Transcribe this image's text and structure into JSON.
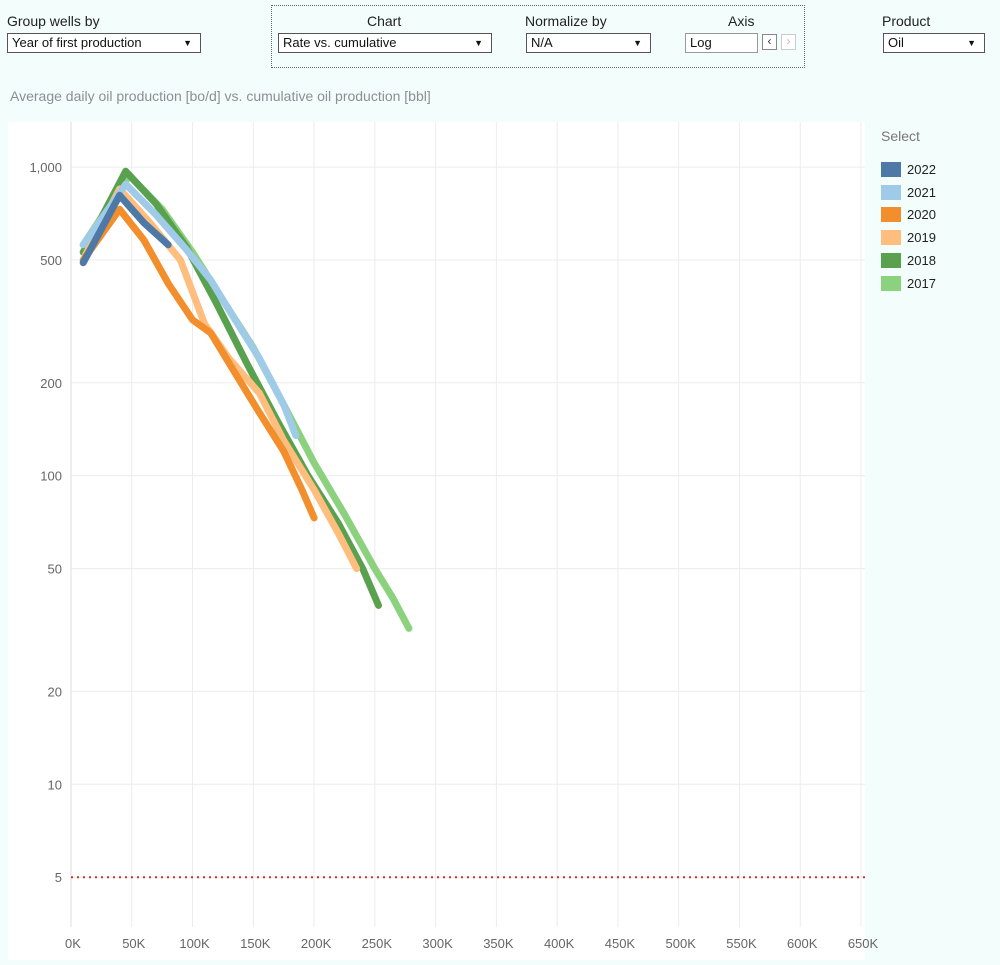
{
  "controls": {
    "group_wells_by": {
      "label": "Group wells by",
      "value": "Year of first production"
    },
    "chart": {
      "label": "Chart",
      "value": "Rate vs. cumulative"
    },
    "normalize_by": {
      "label": "Normalize by",
      "value": "N/A"
    },
    "axis": {
      "label": "Axis",
      "value": "Log"
    },
    "product": {
      "label": "Product",
      "value": "Oil"
    }
  },
  "icons": {
    "dropdown": "caret-down-icon",
    "prev": "chevron-left-icon",
    "next": "chevron-right-icon"
  },
  "arrow_glyph": "▼",
  "prev_glyph": "‹",
  "next_glyph": "›",
  "legend": {
    "title": "Select",
    "items": [
      {
        "label": "2022",
        "color": "#4e79a7"
      },
      {
        "label": "2021",
        "color": "#a0cbe8"
      },
      {
        "label": "2020",
        "color": "#f28e2b"
      },
      {
        "label": "2019",
        "color": "#ffbe7d"
      },
      {
        "label": "2018",
        "color": "#59a14f"
      },
      {
        "label": "2017",
        "color": "#8cd17d"
      }
    ]
  },
  "chart_data": {
    "type": "line",
    "title": "Average daily oil production [bo/d] vs. cumulative oil production [bbl]",
    "xlabel": "",
    "ylabel": "",
    "x_scale": "linear",
    "y_scale": "log",
    "xlim": [
      0,
      650000
    ],
    "ylim": [
      3.5,
      1400
    ],
    "x_ticks": [
      {
        "value": 0,
        "label": "0K"
      },
      {
        "value": 50000,
        "label": "50K"
      },
      {
        "value": 100000,
        "label": "100K"
      },
      {
        "value": 150000,
        "label": "150K"
      },
      {
        "value": 200000,
        "label": "200K"
      },
      {
        "value": 250000,
        "label": "250K"
      },
      {
        "value": 300000,
        "label": "300K"
      },
      {
        "value": 350000,
        "label": "350K"
      },
      {
        "value": 400000,
        "label": "400K"
      },
      {
        "value": 450000,
        "label": "450K"
      },
      {
        "value": 500000,
        "label": "500K"
      },
      {
        "value": 550000,
        "label": "550K"
      },
      {
        "value": 600000,
        "label": "600K"
      },
      {
        "value": 650000,
        "label": "650K"
      }
    ],
    "y_ticks": [
      {
        "value": 1000,
        "label": "1,000"
      },
      {
        "value": 500,
        "label": "500"
      },
      {
        "value": 200,
        "label": "200"
      },
      {
        "value": 100,
        "label": "100"
      },
      {
        "value": 50,
        "label": "50"
      },
      {
        "value": 20,
        "label": "20"
      },
      {
        "value": 10,
        "label": "10"
      },
      {
        "value": 5,
        "label": "5"
      }
    ],
    "grid": true,
    "reference_line": {
      "y": 5,
      "color": "#c0392b",
      "style": "dotted"
    },
    "legend_position": "right",
    "series": [
      {
        "name": "2017",
        "color": "#8cd17d",
        "x": [
          10000,
          48000,
          75000,
          100000,
          125000,
          150000,
          175000,
          200000,
          225000,
          250000,
          265000,
          278000
        ],
        "y": [
          560,
          940,
          730,
          530,
          370,
          260,
          170,
          110,
          75,
          50,
          40,
          32
        ]
      },
      {
        "name": "2018",
        "color": "#59a14f",
        "x": [
          10000,
          45000,
          70000,
          95000,
          120000,
          145000,
          170000,
          195000,
          220000,
          240000,
          253000
        ],
        "y": [
          530,
          970,
          760,
          550,
          360,
          230,
          150,
          100,
          70,
          50,
          38
        ]
      },
      {
        "name": "2019",
        "color": "#ffbe7d",
        "x": [
          12000,
          40000,
          65000,
          90000,
          110000,
          130000,
          155000,
          175000,
          200000,
          220000,
          235000
        ],
        "y": [
          520,
          850,
          660,
          500,
          310,
          240,
          185,
          130,
          90,
          65,
          50
        ]
      },
      {
        "name": "2020",
        "color": "#f28e2b",
        "x": [
          10000,
          40000,
          60000,
          80000,
          100000,
          115000,
          135000,
          155000,
          175000,
          190000,
          200000
        ],
        "y": [
          500,
          730,
          580,
          420,
          320,
          290,
          215,
          160,
          120,
          90,
          73
        ]
      },
      {
        "name": "2021",
        "color": "#a0cbe8",
        "x": [
          10000,
          45000,
          70000,
          95000,
          115000,
          135000,
          155000,
          175000,
          185000
        ],
        "y": [
          560,
          880,
          700,
          540,
          430,
          320,
          240,
          170,
          135
        ]
      },
      {
        "name": "2022",
        "color": "#4e79a7",
        "x": [
          10000,
          40000,
          60000,
          80000
        ],
        "y": [
          490,
          810,
          660,
          560
        ]
      }
    ]
  }
}
